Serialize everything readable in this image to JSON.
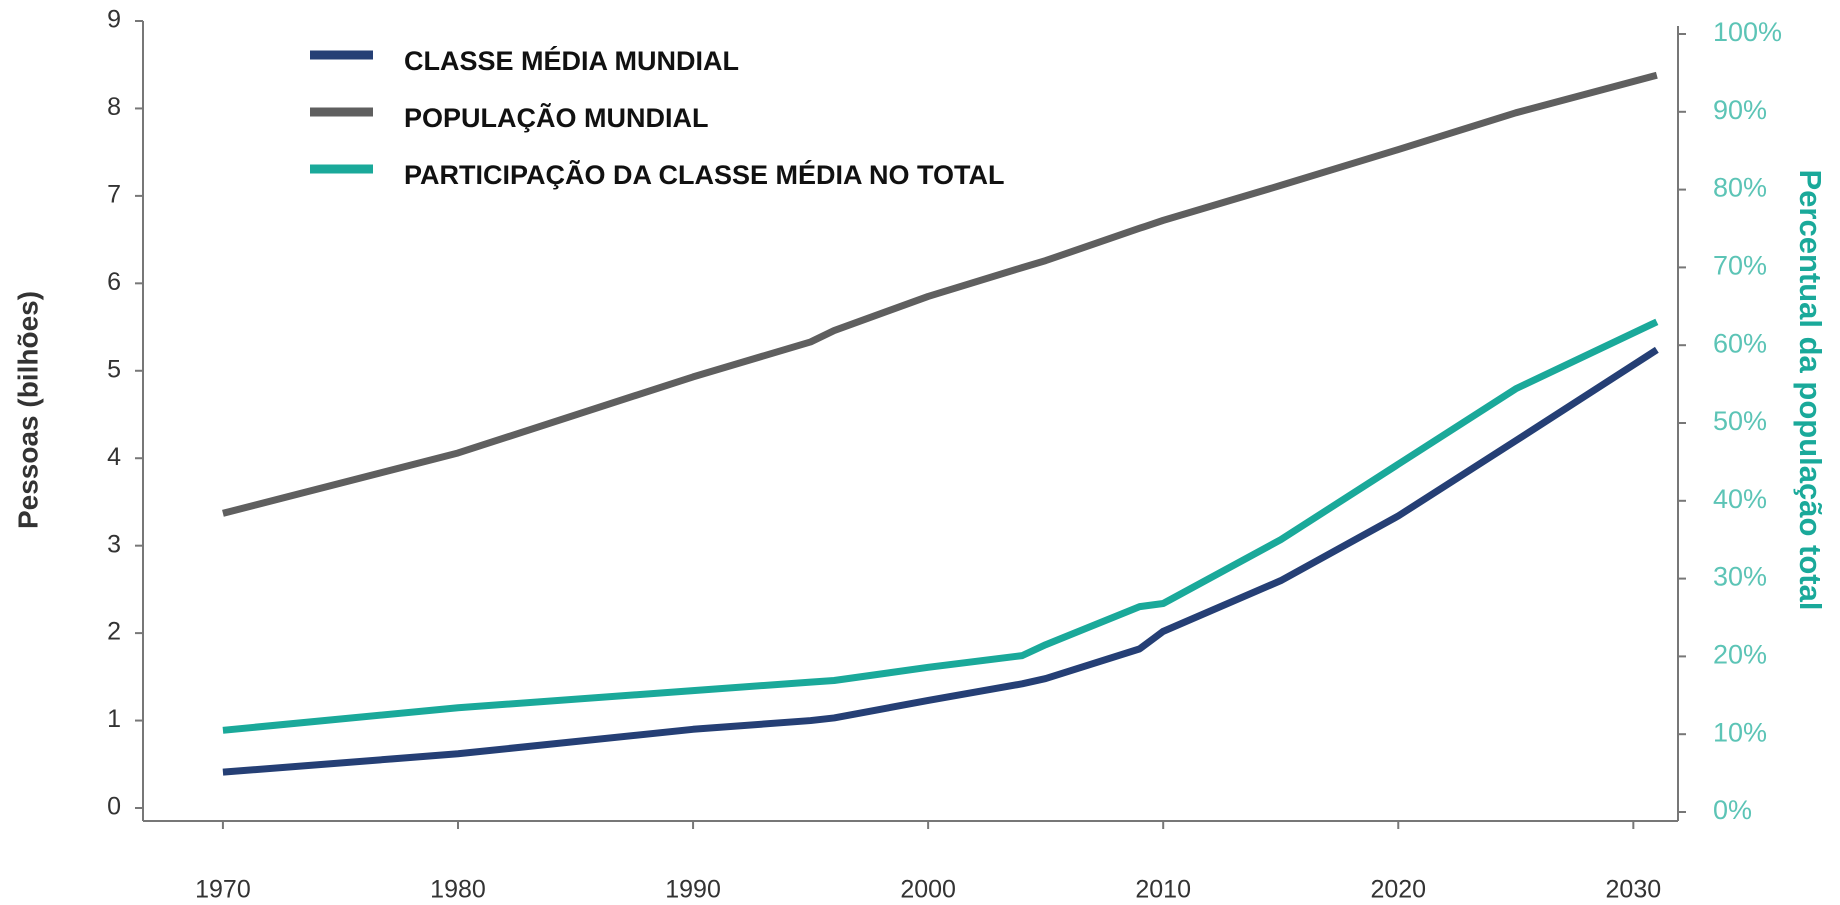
{
  "chart_data": {
    "type": "line",
    "x": [
      1970,
      1980,
      1990,
      1995,
      1996,
      2000,
      2004,
      2005,
      2009,
      2010,
      2015,
      2020,
      2025,
      2031
    ],
    "xlim": [
      1966.6,
      2031.9
    ],
    "xticks": [
      1970,
      1980,
      1990,
      2000,
      2010,
      2020,
      2030
    ],
    "ylim": [
      0,
      9
    ],
    "yticks": [
      0,
      1,
      2,
      3,
      4,
      5,
      6,
      7,
      8,
      9
    ],
    "y2lim": [
      0,
      100
    ],
    "y2ticks": [
      {
        "value": 0,
        "label": "0%"
      },
      {
        "value": 10,
        "label": "10%"
      },
      {
        "value": 20,
        "label": "20%"
      },
      {
        "value": 30,
        "label": "30%"
      },
      {
        "value": 40,
        "label": "40%"
      },
      {
        "value": 50,
        "label": "50%"
      },
      {
        "value": 60,
        "label": "60%"
      },
      {
        "value": 70,
        "label": "70%"
      },
      {
        "value": 80,
        "label": "80%"
      },
      {
        "value": 90,
        "label": "90%"
      },
      {
        "value": 100,
        "label": "100%"
      }
    ],
    "ylabel": "Pessoas (bilhões)",
    "y2label": "Percentual da população total",
    "legend": "upper left",
    "series": [
      {
        "name": "CLASSE MÉDIA MUNDIAL",
        "color": "#253f75",
        "values": [
          0.41,
          0.62,
          0.9,
          1.0,
          1.03,
          1.23,
          1.42,
          1.48,
          1.82,
          2.02,
          2.6,
          3.34,
          4.2,
          5.24
        ]
      },
      {
        "name": "POPULAÇÃO MUNDIAL",
        "color": "#5f5f5f",
        "values": [
          3.37,
          4.06,
          4.93,
          5.33,
          5.46,
          5.85,
          6.18,
          6.26,
          6.63,
          6.72,
          7.12,
          7.53,
          7.95,
          8.38
        ]
      },
      {
        "name": "PARTICIPAÇÃO DA CLASSE MÉDIA NO TOTAL",
        "color": "#1aa99a",
        "axis": "y2",
        "values": [
          10.5,
          13.4,
          15.6,
          16.7,
          16.9,
          18.6,
          20.1,
          21.5,
          26.4,
          26.8,
          35,
          44.7,
          54.4,
          63
        ]
      }
    ]
  }
}
